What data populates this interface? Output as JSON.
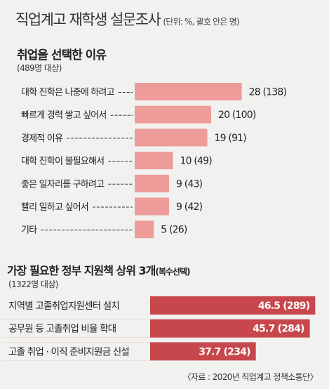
{
  "title": "직업계고 재학생 설문조사",
  "unit_note": "(단위: %, 괄호 안은 명)",
  "footer": "〈자료 : 2020년 직업계고 정책소통단〉",
  "colors": {
    "bar1": "#ee9c9a",
    "bar2": "#c7474c",
    "leader": "#333333"
  },
  "chart_data": [
    {
      "type": "bar",
      "orientation": "horizontal",
      "title": "취업을 선택한 이유",
      "subtitle": "(489명 대상)",
      "categories": [
        "대학 진학은 나중에 하려고",
        "빠르게 경력 쌓고 싶어서",
        "경제적 이유",
        "대학 진학이 불필요해서",
        "좋은 일자리를 구하려고",
        "빨리 일하고 싶어서",
        "기타"
      ],
      "values": [
        28,
        20,
        19,
        10,
        9,
        9,
        5
      ],
      "counts": [
        138,
        100,
        91,
        49,
        43,
        42,
        26
      ],
      "value_labels": [
        "28 (138)",
        "20 (100)",
        "19 (91)",
        "10 (49)",
        "9 (43)",
        "9 (42)",
        "5 (26)"
      ]
    },
    {
      "type": "bar",
      "orientation": "horizontal",
      "title": "가장 필요한 정부 지원책 상위 3개",
      "title_suffix": "(복수선택)",
      "subtitle": "(1322명 대상)",
      "categories": [
        "지역별 고졸취업지원센터 설치",
        "공무원 등 고졸취업 비율 확대",
        "고졸 취업 · 이직 준비지원금 신설"
      ],
      "values": [
        46.5,
        45.7,
        37.7
      ],
      "counts": [
        289,
        284,
        234
      ],
      "value_labels": [
        "46.5 (289)",
        "45.7 (284)",
        "37.7 (234)"
      ]
    }
  ]
}
